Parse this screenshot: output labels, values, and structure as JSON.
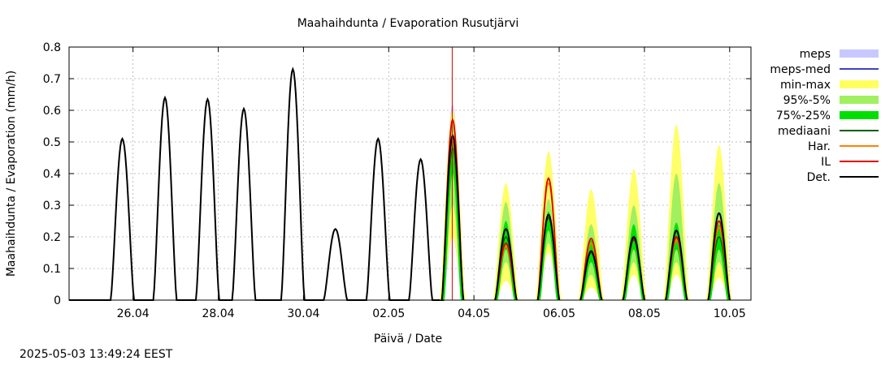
{
  "chart_data": {
    "type": "area",
    "title": "Maahaihdunta / Evaporation  Rusutjärvi",
    "xlabel": "Päivä / Date",
    "ylabel": "Maahaihdunta / Evaporation (mm/h)",
    "x_unit": "days since 25.04 00:00",
    "xlim": [
      -0.5,
      15.5
    ],
    "ylim": [
      0,
      0.8
    ],
    "y_ticks": [
      "0",
      "0.1",
      "0.2",
      "0.3",
      "0.4",
      "0.5",
      "0.6",
      "0.7",
      "0.8"
    ],
    "y_tick_values": [
      0,
      0.1,
      0.2,
      0.3,
      0.4,
      0.5,
      0.6,
      0.7,
      0.8
    ],
    "x_ticks": [
      "26.04",
      "28.04",
      "30.04",
      "02.05",
      "04.05",
      "06.05",
      "08.05",
      "10.05"
    ],
    "x_tick_values": [
      1,
      3,
      5,
      7,
      9,
      11,
      13,
      15
    ],
    "grid": true,
    "now_line_x": 8.49,
    "legend_position": "right",
    "legend": [
      {
        "label": "meps",
        "kind": "band",
        "color": "#c8c8ff"
      },
      {
        "label": "meps-med",
        "kind": "line",
        "color": "#4040c0"
      },
      {
        "label": "min-max",
        "kind": "band",
        "color": "#ffff60"
      },
      {
        "label": "95%-5%",
        "kind": "band",
        "color": "#a0f060"
      },
      {
        "label": "75%-25%",
        "kind": "band",
        "color": "#00e000"
      },
      {
        "label": "mediaani",
        "kind": "line",
        "color": "#006000"
      },
      {
        "label": "Har.",
        "kind": "line",
        "color": "#ff8000"
      },
      {
        "label": "IL",
        "kind": "line",
        "color": "#e00000"
      },
      {
        "label": "Det.",
        "kind": "line",
        "color": "#000000"
      }
    ],
    "observed_daily_peaks": [
      {
        "date": "25.04",
        "peak_x": 0.75,
        "peak": 0.51
      },
      {
        "date": "26.04",
        "peak_x": 1.75,
        "peak": 0.64
      },
      {
        "date": "27.04",
        "peak_x": 2.75,
        "peak": 0.635
      },
      {
        "date": "28.04",
        "peak_x": 3.6,
        "peak": 0.605
      },
      {
        "date": "29.04",
        "peak_x": 4.75,
        "peak": 0.73
      },
      {
        "date": "30.04",
        "peak_x": 5.75,
        "peak": 0.225
      },
      {
        "date": "01.05",
        "peak_x": 6.75,
        "peak": 0.51
      },
      {
        "date": "02.05",
        "peak_x": 7.75,
        "peak": 0.445
      }
    ],
    "forecast_days": [
      {
        "date": "03.05",
        "peak_x": 8.5,
        "det": 0.52,
        "median": 0.48,
        "q25": 0.4,
        "q75": 0.5,
        "p5": 0.3,
        "p95": 0.56,
        "min": 0.2,
        "max": 0.6,
        "har": 0.5,
        "il": 0.57,
        "meps_min": 0.2,
        "meps_max": 0.62
      },
      {
        "date": "04.05",
        "peak_x": 9.75,
        "det": 0.225,
        "median": 0.2,
        "q25": 0.16,
        "q75": 0.25,
        "p5": 0.12,
        "p95": 0.31,
        "min": 0.06,
        "max": 0.37,
        "har": 0.17,
        "il": 0.18,
        "meps_min": 0.1,
        "meps_max": 0.25
      },
      {
        "date": "05.05",
        "peak_x": 10.75,
        "det": 0.27,
        "median": 0.26,
        "q25": 0.22,
        "q75": 0.28,
        "p5": 0.18,
        "p95": 0.32,
        "min": 0.15,
        "max": 0.47,
        "har": 0.37,
        "il": 0.385,
        "meps_min": 0.18,
        "meps_max": 0.47
      },
      {
        "date": "06.05",
        "peak_x": 11.75,
        "det": 0.155,
        "median": 0.15,
        "q25": 0.12,
        "q75": 0.19,
        "p5": 0.08,
        "p95": 0.24,
        "min": 0.04,
        "max": 0.35,
        "har": 0.18,
        "il": 0.195,
        "meps_min": 0.1,
        "meps_max": 0.2
      },
      {
        "date": "07.05",
        "peak_x": 12.75,
        "det": 0.2,
        "median": 0.19,
        "q25": 0.16,
        "q75": 0.24,
        "p5": 0.12,
        "p95": 0.3,
        "min": 0.08,
        "max": 0.415,
        "har": 0.2,
        "il": 0.195,
        "meps_min": 0.15,
        "meps_max": 0.22
      },
      {
        "date": "08.05",
        "peak_x": 13.75,
        "det": 0.22,
        "median": 0.2,
        "q25": 0.16,
        "q75": 0.245,
        "p5": 0.12,
        "p95": 0.4,
        "min": 0.08,
        "max": 0.555,
        "har": 0.19,
        "il": 0.2,
        "meps_min": 0.15,
        "meps_max": 0.24
      },
      {
        "date": "09.05",
        "peak_x": 14.75,
        "det": 0.275,
        "median": 0.2,
        "q25": 0.16,
        "q75": 0.24,
        "p5": 0.12,
        "p95": 0.37,
        "min": 0.07,
        "max": 0.49,
        "har": 0.23,
        "il": 0.25,
        "meps_min": 0.18,
        "meps_max": 0.27
      }
    ]
  },
  "footer": {
    "timestamp": "2025-05-03 13:49:24 EEST"
  }
}
